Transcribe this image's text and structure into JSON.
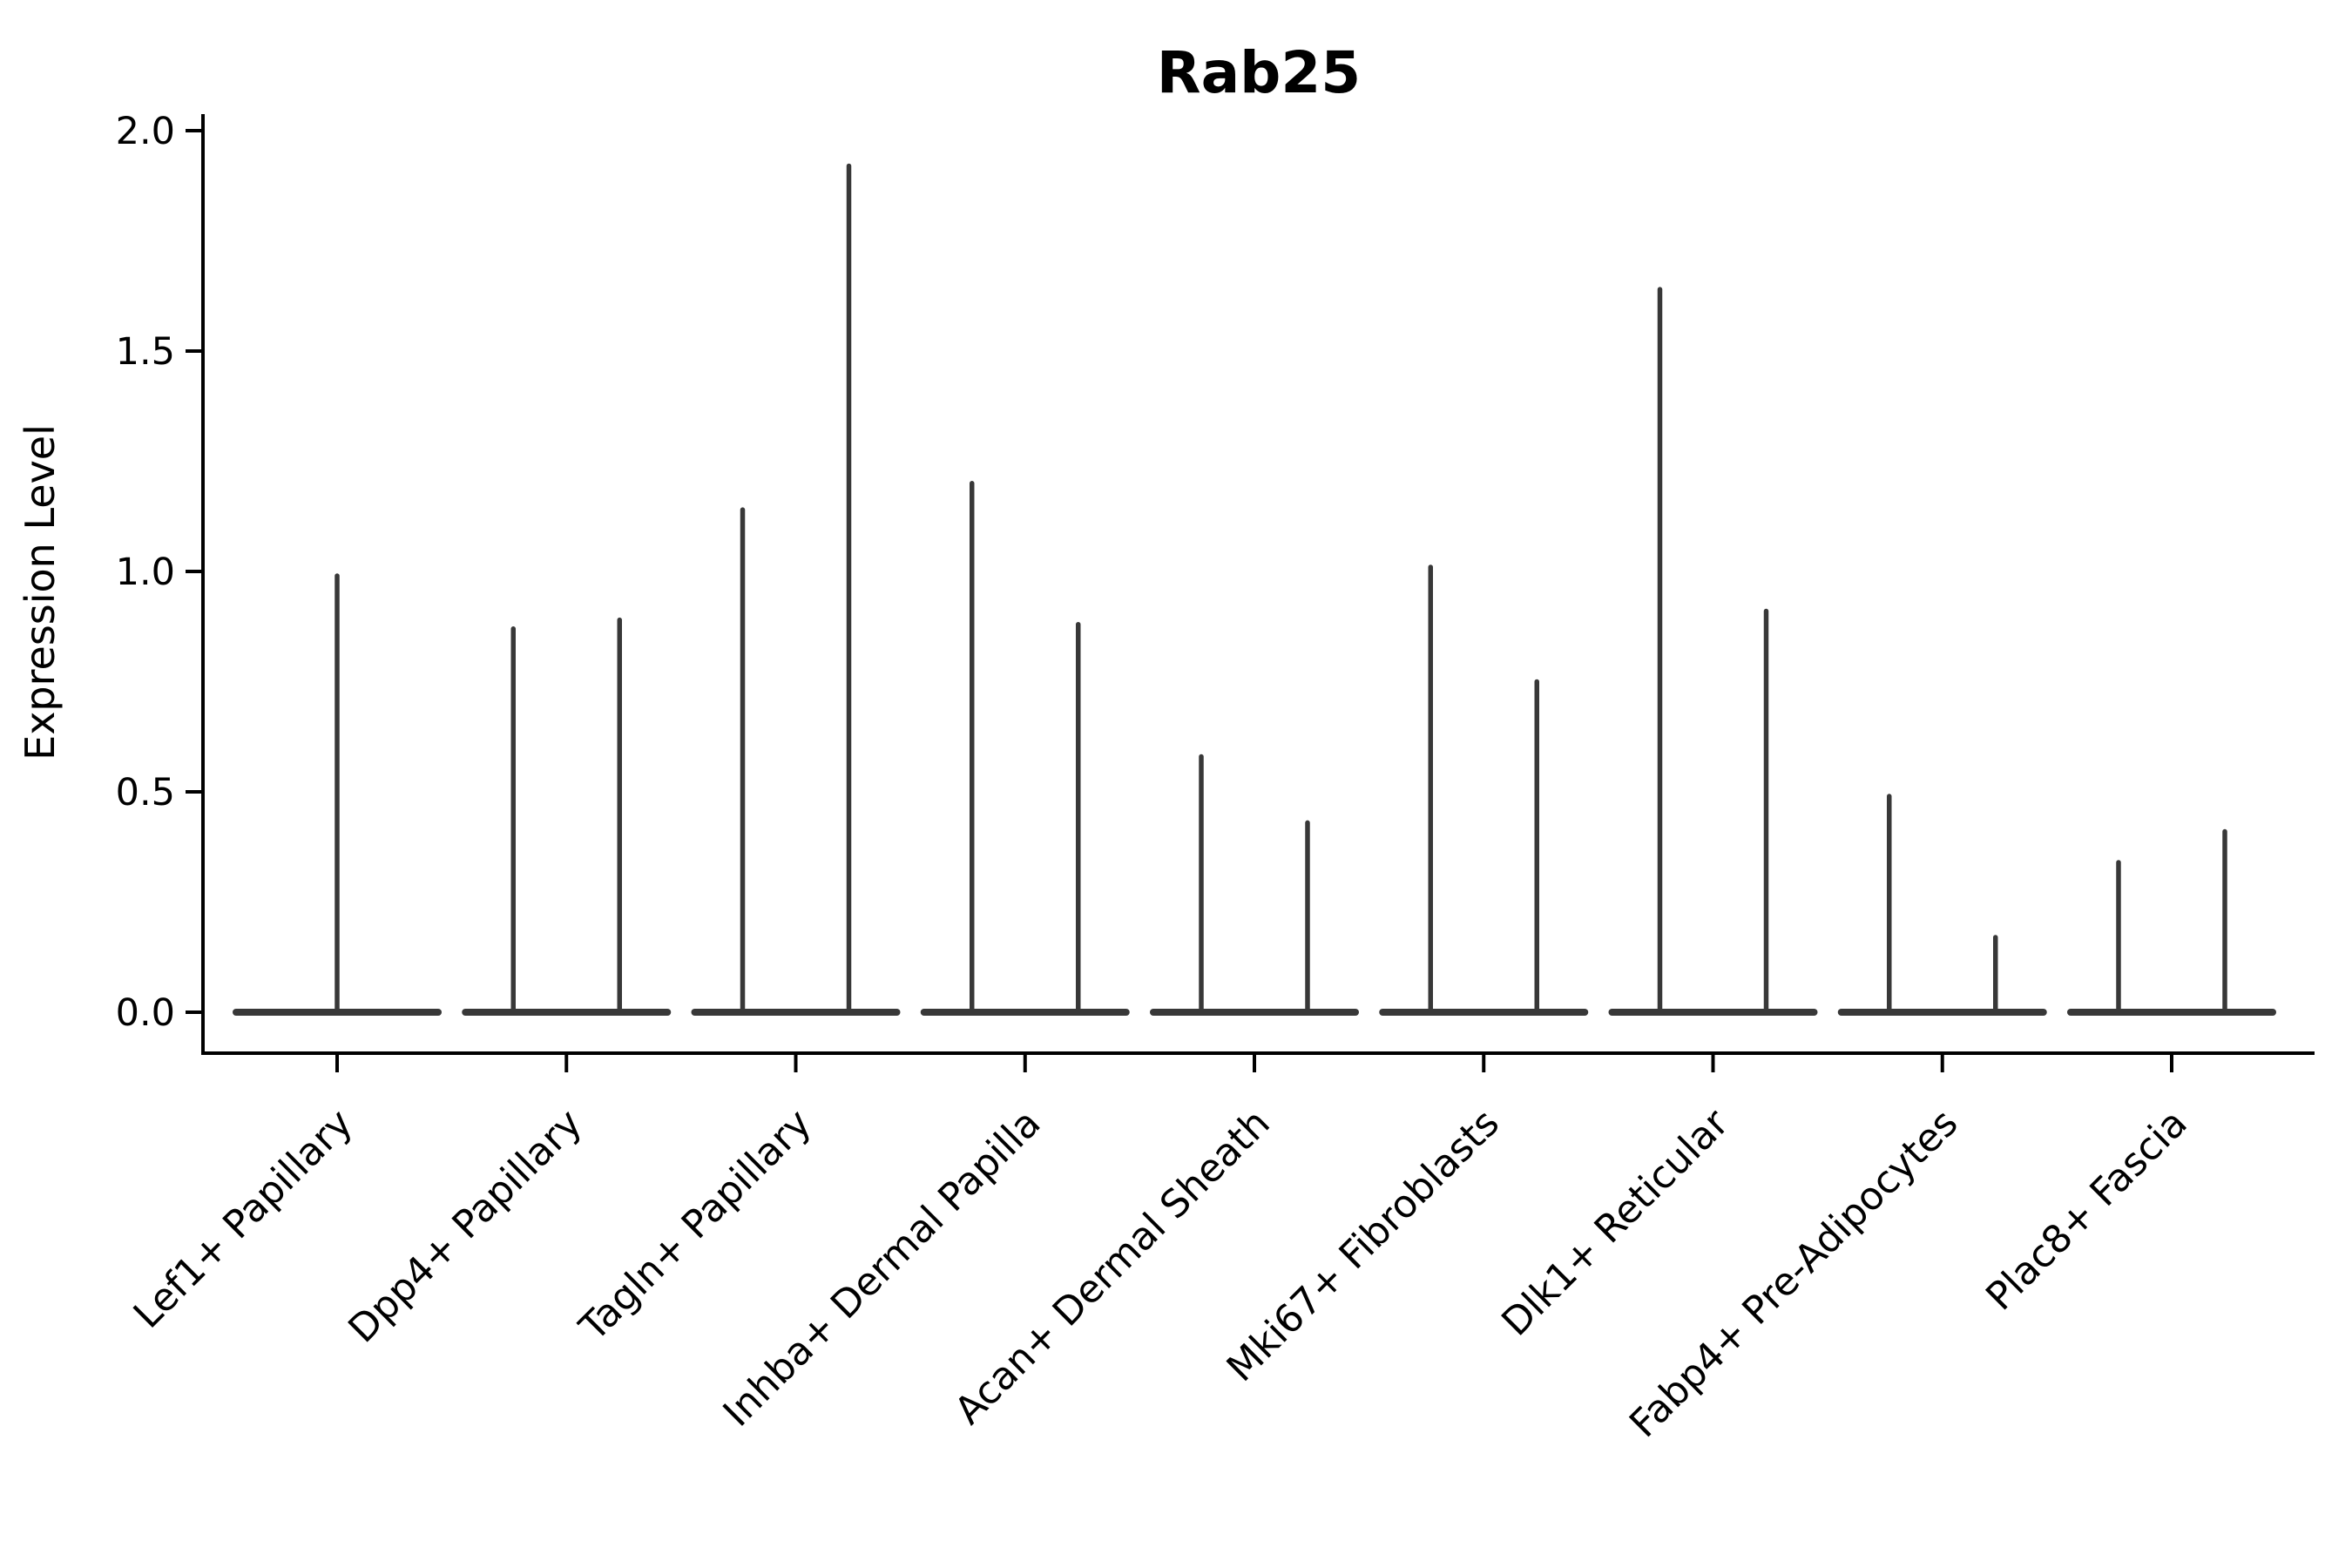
{
  "chart_data": {
    "type": "violin",
    "title": "Rab25",
    "xlabel": "",
    "ylabel": "Expression Level",
    "ylim": [
      0,
      2
    ],
    "yticks": [
      {
        "value": 0.0,
        "label": "0.0"
      },
      {
        "value": 0.5,
        "label": "0.5"
      },
      {
        "value": 1.0,
        "label": "1.0"
      },
      {
        "value": 1.5,
        "label": "1.5"
      },
      {
        "value": 2.0,
        "label": "2.0"
      }
    ],
    "grid": false,
    "legend": "none",
    "x_tick_rotation_degrees": 45,
    "description": "Violin plot of Rab25 expression per fibroblast cell type; density is concentrated at 0 (flat base bar) with thin spikes reaching each violin's maximum expression value. Most categories contain two side-by-side (dodged) violins.",
    "categories": [
      {
        "label": "Lef1+ Papillary",
        "violin_max_values": [
          0.99
        ],
        "spikes": [
          {
            "dx": 0,
            "max": 0.99
          }
        ]
      },
      {
        "label": "Dpp4+ Papillary",
        "violin_max_values": [
          0.87,
          0.89
        ],
        "spikes": [
          {
            "dx": -61,
            "max": 0.87
          },
          {
            "dx": 61,
            "max": 0.89
          }
        ]
      },
      {
        "label": "Tagln+ Papillary",
        "violin_max_values": [
          1.14,
          1.92
        ],
        "spikes": [
          {
            "dx": -61,
            "max": 1.14
          },
          {
            "dx": 61,
            "max": 1.92
          }
        ]
      },
      {
        "label": "Inhba+ Dermal Papilla",
        "violin_max_values": [
          1.2,
          0.88
        ],
        "spikes": [
          {
            "dx": -61,
            "max": 1.2
          },
          {
            "dx": 61,
            "max": 0.88
          }
        ]
      },
      {
        "label": "Acan+ Dermal Sheath",
        "violin_max_values": [
          0.58,
          0.43
        ],
        "spikes": [
          {
            "dx": -61,
            "max": 0.58
          },
          {
            "dx": 61,
            "max": 0.43
          }
        ]
      },
      {
        "label": "Mki67+ Fibroblasts",
        "violin_max_values": [
          1.01,
          0.75
        ],
        "spikes": [
          {
            "dx": -61,
            "max": 1.01
          },
          {
            "dx": 61,
            "max": 0.75
          }
        ]
      },
      {
        "label": "Dlk1+ Reticular",
        "violin_max_values": [
          1.64,
          0.91
        ],
        "spikes": [
          {
            "dx": -61,
            "max": 1.64
          },
          {
            "dx": 61,
            "max": 0.91
          }
        ]
      },
      {
        "label": "Fabp4+ Pre-Adipocytes",
        "violin_max_values": [
          0.49,
          0.17
        ],
        "spikes": [
          {
            "dx": -61,
            "max": 0.49
          },
          {
            "dx": 61,
            "max": 0.17
          }
        ]
      },
      {
        "label": "Plac8+ Fascia",
        "violin_max_values": [
          0.34,
          0.41
        ],
        "spikes": [
          {
            "dx": -61,
            "max": 0.34
          },
          {
            "dx": 61,
            "max": 0.41
          }
        ]
      }
    ],
    "colors": {
      "violin": "#383838",
      "axis": "#000000",
      "text": "#000000",
      "background": "#ffffff"
    }
  }
}
